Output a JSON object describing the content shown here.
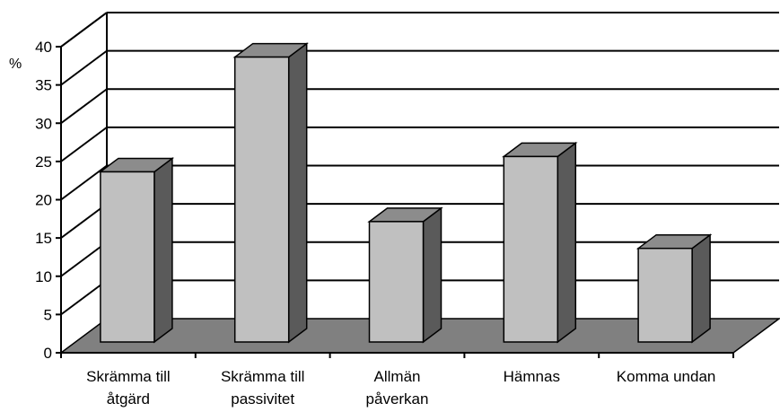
{
  "chart_data": {
    "type": "bar",
    "title": "",
    "xlabel": "",
    "ylabel": "%",
    "ylim": [
      0,
      40
    ],
    "yticks": [
      0,
      5,
      10,
      15,
      20,
      25,
      30,
      35,
      40
    ],
    "grid": true,
    "three_d": true,
    "categories": [
      [
        "Skrämma till",
        "åtgärd"
      ],
      [
        "Skrämma till",
        "passivitet"
      ],
      [
        "Allmän",
        "påverkan"
      ],
      [
        "Hämnas"
      ],
      [
        "Komma undan"
      ]
    ],
    "values": [
      22,
      37,
      15.5,
      24,
      12
    ],
    "colors": {
      "bar_front": "#c0c0c0",
      "bar_top": "#8c8c8c",
      "bar_side": "#5a5a5a",
      "floor": "#808080",
      "lines": "#000000"
    }
  }
}
